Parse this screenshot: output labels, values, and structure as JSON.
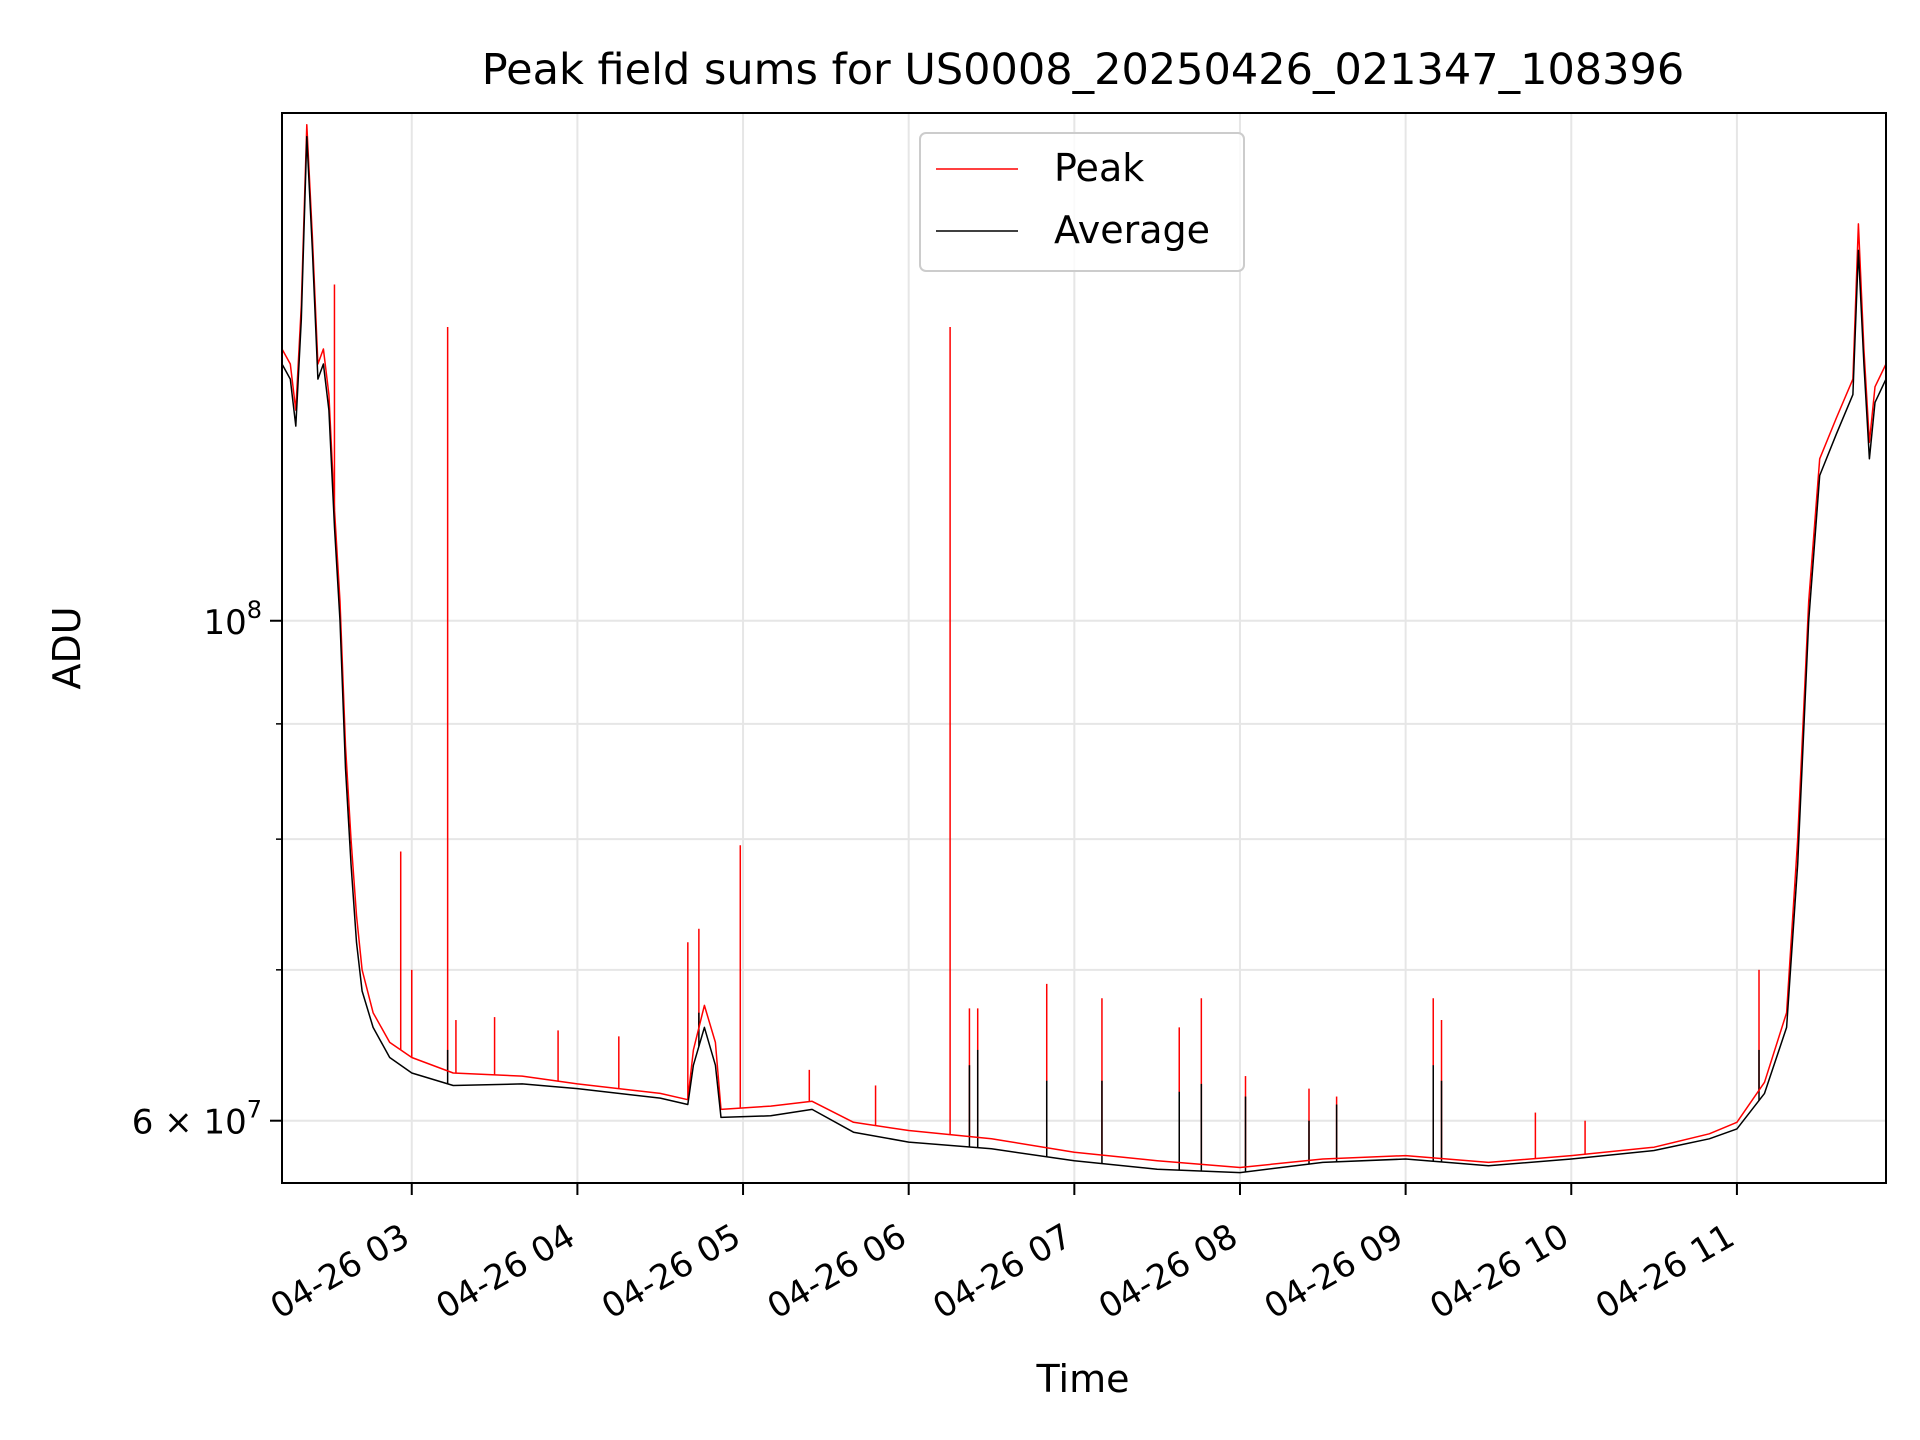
{
  "chart_data": {
    "type": "line",
    "title": "Peak field sums for US0008_20250426_021347_108396",
    "xlabel": "Time",
    "ylabel": "ADU",
    "y_scale": "log",
    "grid": true,
    "legend_position": "top-center",
    "xlim": [
      "2025-04-26 02:13",
      "2025-04-26 11:54"
    ],
    "ylim": [
      56300000,
      168000000
    ],
    "x_ticks": [
      {
        "t": "2025-04-26 03:00",
        "label": "04-26 03"
      },
      {
        "t": "2025-04-26 04:00",
        "label": "04-26 04"
      },
      {
        "t": "2025-04-26 05:00",
        "label": "04-26 05"
      },
      {
        "t": "2025-04-26 06:00",
        "label": "04-26 06"
      },
      {
        "t": "2025-04-26 07:00",
        "label": "04-26 07"
      },
      {
        "t": "2025-04-26 08:00",
        "label": "04-26 08"
      },
      {
        "t": "2025-04-26 09:00",
        "label": "04-26 09"
      },
      {
        "t": "2025-04-26 10:00",
        "label": "04-26 10"
      },
      {
        "t": "2025-04-26 11:00",
        "label": "04-26 11"
      }
    ],
    "y_major_ticks": [
      {
        "value": 60000000,
        "base": "6 × 10",
        "exp": "7"
      },
      {
        "value": 100000000,
        "base": "10",
        "exp": "8"
      }
    ],
    "y_minor_ticks": [
      70000000,
      80000000,
      90000000
    ],
    "series": [
      {
        "name": "Peak",
        "color": "#ff0000",
        "points": [
          [
            "2025-04-26 02:13",
            132000000
          ],
          [
            "2025-04-26 02:16",
            130000000
          ],
          [
            "2025-04-26 02:18",
            124000000
          ],
          [
            "2025-04-26 02:20",
            138000000
          ],
          [
            "2025-04-26 02:22",
            166000000
          ],
          [
            "2025-04-26 02:24",
            148000000
          ],
          [
            "2025-04-26 02:26",
            130000000
          ],
          [
            "2025-04-26 02:28",
            132000000
          ],
          [
            "2025-04-26 02:30",
            126000000
          ],
          [
            "2025-04-26 02:32",
            112000000
          ],
          [
            "2025-04-26 02:34",
            102000000
          ],
          [
            "2025-04-26 02:36",
            88000000
          ],
          [
            "2025-04-26 02:38",
            80000000
          ],
          [
            "2025-04-26 02:40",
            74000000
          ],
          [
            "2025-04-26 02:42",
            70000000
          ],
          [
            "2025-04-26 02:46",
            67000000
          ],
          [
            "2025-04-26 02:52",
            65000000
          ],
          [
            "2025-04-26 03:00",
            64000000
          ],
          [
            "2025-04-26 03:15",
            63000000
          ],
          [
            "2025-04-26 03:40",
            62800000
          ],
          [
            "2025-04-26 04:00",
            62300000
          ],
          [
            "2025-04-26 04:30",
            61700000
          ],
          [
            "2025-04-26 04:40",
            61300000
          ],
          [
            "2025-04-26 04:42",
            64500000
          ],
          [
            "2025-04-26 04:46",
            67500000
          ],
          [
            "2025-04-26 04:50",
            65000000
          ],
          [
            "2025-04-26 04:52",
            60700000
          ],
          [
            "2025-04-26 05:10",
            60900000
          ],
          [
            "2025-04-26 05:25",
            61200000
          ],
          [
            "2025-04-26 05:40",
            59900000
          ],
          [
            "2025-04-26 06:00",
            59400000
          ],
          [
            "2025-04-26 06:30",
            58900000
          ],
          [
            "2025-04-26 07:00",
            58100000
          ],
          [
            "2025-04-26 07:30",
            57600000
          ],
          [
            "2025-04-26 08:00",
            57200000
          ],
          [
            "2025-04-26 08:30",
            57700000
          ],
          [
            "2025-04-26 09:00",
            57900000
          ],
          [
            "2025-04-26 09:30",
            57500000
          ],
          [
            "2025-04-26 10:00",
            57900000
          ],
          [
            "2025-04-26 10:30",
            58400000
          ],
          [
            "2025-04-26 10:50",
            59200000
          ],
          [
            "2025-04-26 11:00",
            59900000
          ],
          [
            "2025-04-26 11:10",
            62400000
          ],
          [
            "2025-04-26 11:18",
            67000000
          ],
          [
            "2025-04-26 11:22",
            80000000
          ],
          [
            "2025-04-26 11:26",
            102000000
          ],
          [
            "2025-04-26 11:30",
            118000000
          ],
          [
            "2025-04-26 11:36",
            123000000
          ],
          [
            "2025-04-26 11:42",
            128000000
          ],
          [
            "2025-04-26 11:44",
            150000000
          ],
          [
            "2025-04-26 11:46",
            132000000
          ],
          [
            "2025-04-26 11:48",
            120000000
          ],
          [
            "2025-04-26 11:50",
            127000000
          ],
          [
            "2025-04-26 11:54",
            130000000
          ]
        ],
        "spikes": [
          [
            "2025-04-26 02:32",
            141000000
          ],
          [
            "2025-04-26 02:56",
            79000000
          ],
          [
            "2025-04-26 03:00",
            70000000
          ],
          [
            "2025-04-26 03:13",
            135000000
          ],
          [
            "2025-04-26 03:16",
            66500000
          ],
          [
            "2025-04-26 03:30",
            66700000
          ],
          [
            "2025-04-26 03:53",
            65800000
          ],
          [
            "2025-04-26 04:15",
            65400000
          ],
          [
            "2025-04-26 04:40",
            72000000
          ],
          [
            "2025-04-26 04:44",
            73000000
          ],
          [
            "2025-04-26 04:59",
            79500000
          ],
          [
            "2025-04-26 05:24",
            63200000
          ],
          [
            "2025-04-26 05:48",
            62200000
          ],
          [
            "2025-04-26 06:15",
            135000000
          ],
          [
            "2025-04-26 06:22",
            67300000
          ],
          [
            "2025-04-26 06:25",
            67300000
          ],
          [
            "2025-04-26 06:50",
            69000000
          ],
          [
            "2025-04-26 07:10",
            68000000
          ],
          [
            "2025-04-26 07:38",
            66000000
          ],
          [
            "2025-04-26 07:46",
            68000000
          ],
          [
            "2025-04-26 08:02",
            62800000
          ],
          [
            "2025-04-26 08:25",
            62000000
          ],
          [
            "2025-04-26 08:35",
            61500000
          ],
          [
            "2025-04-26 09:10",
            68000000
          ],
          [
            "2025-04-26 09:13",
            66500000
          ],
          [
            "2025-04-26 09:47",
            60500000
          ],
          [
            "2025-04-26 10:05",
            60000000
          ],
          [
            "2025-04-26 11:08",
            70000000
          ]
        ]
      },
      {
        "name": "Average",
        "color": "#000000",
        "points": [
          [
            "2025-04-26 02:13",
            130000000
          ],
          [
            "2025-04-26 02:16",
            128000000
          ],
          [
            "2025-04-26 02:18",
            122000000
          ],
          [
            "2025-04-26 02:20",
            136000000
          ],
          [
            "2025-04-26 02:22",
            164000000
          ],
          [
            "2025-04-26 02:24",
            146000000
          ],
          [
            "2025-04-26 02:26",
            128000000
          ],
          [
            "2025-04-26 02:28",
            130000000
          ],
          [
            "2025-04-26 02:30",
            124000000
          ],
          [
            "2025-04-26 02:32",
            110000000
          ],
          [
            "2025-04-26 02:34",
            100000000
          ],
          [
            "2025-04-26 02:36",
            86000000
          ],
          [
            "2025-04-26 02:38",
            78000000
          ],
          [
            "2025-04-26 02:40",
            72000000
          ],
          [
            "2025-04-26 02:42",
            68500000
          ],
          [
            "2025-04-26 02:46",
            66000000
          ],
          [
            "2025-04-26 02:52",
            64000000
          ],
          [
            "2025-04-26 03:00",
            63000000
          ],
          [
            "2025-04-26 03:15",
            62200000
          ],
          [
            "2025-04-26 03:40",
            62300000
          ],
          [
            "2025-04-26 04:00",
            62000000
          ],
          [
            "2025-04-26 04:30",
            61400000
          ],
          [
            "2025-04-26 04:40",
            61000000
          ],
          [
            "2025-04-26 04:42",
            63500000
          ],
          [
            "2025-04-26 04:46",
            66000000
          ],
          [
            "2025-04-26 04:50",
            63500000
          ],
          [
            "2025-04-26 04:52",
            60200000
          ],
          [
            "2025-04-26 05:10",
            60300000
          ],
          [
            "2025-04-26 05:25",
            60700000
          ],
          [
            "2025-04-26 05:40",
            59300000
          ],
          [
            "2025-04-26 06:00",
            58700000
          ],
          [
            "2025-04-26 06:30",
            58300000
          ],
          [
            "2025-04-26 07:00",
            57600000
          ],
          [
            "2025-04-26 07:30",
            57100000
          ],
          [
            "2025-04-26 08:00",
            56900000
          ],
          [
            "2025-04-26 08:30",
            57500000
          ],
          [
            "2025-04-26 09:00",
            57700000
          ],
          [
            "2025-04-26 09:30",
            57300000
          ],
          [
            "2025-04-26 10:00",
            57700000
          ],
          [
            "2025-04-26 10:30",
            58200000
          ],
          [
            "2025-04-26 10:50",
            58900000
          ],
          [
            "2025-04-26 11:00",
            59500000
          ],
          [
            "2025-04-26 11:10",
            61700000
          ],
          [
            "2025-04-26 11:18",
            66000000
          ],
          [
            "2025-04-26 11:22",
            78000000
          ],
          [
            "2025-04-26 11:26",
            100000000
          ],
          [
            "2025-04-26 11:30",
            116000000
          ],
          [
            "2025-04-26 11:36",
            121000000
          ],
          [
            "2025-04-26 11:42",
            126000000
          ],
          [
            "2025-04-26 11:44",
            146000000
          ],
          [
            "2025-04-26 11:46",
            130000000
          ],
          [
            "2025-04-26 11:48",
            118000000
          ],
          [
            "2025-04-26 11:50",
            125000000
          ],
          [
            "2025-04-26 11:54",
            128000000
          ]
        ],
        "spikes": [
          [
            "2025-04-26 03:13",
            64500000
          ],
          [
            "2025-04-26 04:44",
            67000000
          ],
          [
            "2025-04-26 06:22",
            63500000
          ],
          [
            "2025-04-26 06:25",
            64500000
          ],
          [
            "2025-04-26 06:50",
            62500000
          ],
          [
            "2025-04-26 07:10",
            62500000
          ],
          [
            "2025-04-26 07:38",
            61800000
          ],
          [
            "2025-04-26 07:46",
            62300000
          ],
          [
            "2025-04-26 08:02",
            61500000
          ],
          [
            "2025-04-26 08:25",
            60000000
          ],
          [
            "2025-04-26 08:35",
            61000000
          ],
          [
            "2025-04-26 09:10",
            63500000
          ],
          [
            "2025-04-26 09:13",
            62500000
          ],
          [
            "2025-04-26 11:08",
            64500000
          ]
        ]
      }
    ]
  }
}
